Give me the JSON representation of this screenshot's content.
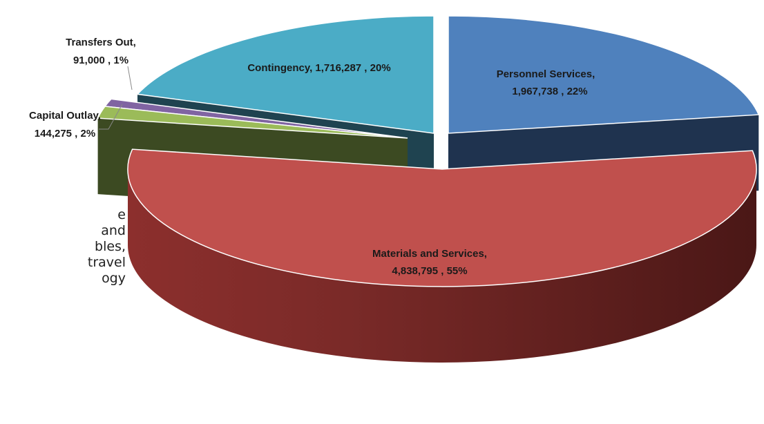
{
  "chart_data": {
    "type": "pie",
    "title": "",
    "slices": [
      {
        "name": "Personnel Services",
        "value": 1967738,
        "value_label": "1,967,738",
        "percent": "22%",
        "color": "#4F81BD"
      },
      {
        "name": "Materials and Services",
        "value": 4838795,
        "value_label": "4,838,795",
        "percent": "55%",
        "color": "#C0504D"
      },
      {
        "name": "Capital Outlay",
        "value": 144275,
        "value_label": "144,275",
        "percent": "2%",
        "color": "#9BBB59"
      },
      {
        "name": "Transfers Out",
        "value": 91000,
        "value_label": "91,000",
        "percent": "1%",
        "color": "#8064A2"
      },
      {
        "name": "Contingency",
        "value": 1716287,
        "value_label": "1,716,287",
        "percent": "20%",
        "color": "#4BACC6"
      }
    ],
    "exploded": [
      "Personnel Services",
      "Materials and Services"
    ],
    "legend": "none",
    "data_labels": {
      "personnel": [
        "Personnel Services,",
        "1,967,738 , 22%"
      ],
      "materials": [
        "Materials and Services,",
        "4,838,795 , 55%"
      ],
      "capital": [
        "Capital Outlay,",
        "144,275 , 2%"
      ],
      "transfers": [
        "Transfers Out,",
        "91,000 , 1%"
      ],
      "contingency": [
        "Contingency,  1,716,287 , 20%"
      ]
    }
  },
  "side_text": [
    "e",
    "and",
    "bles,",
    "travel",
    "ogy"
  ]
}
